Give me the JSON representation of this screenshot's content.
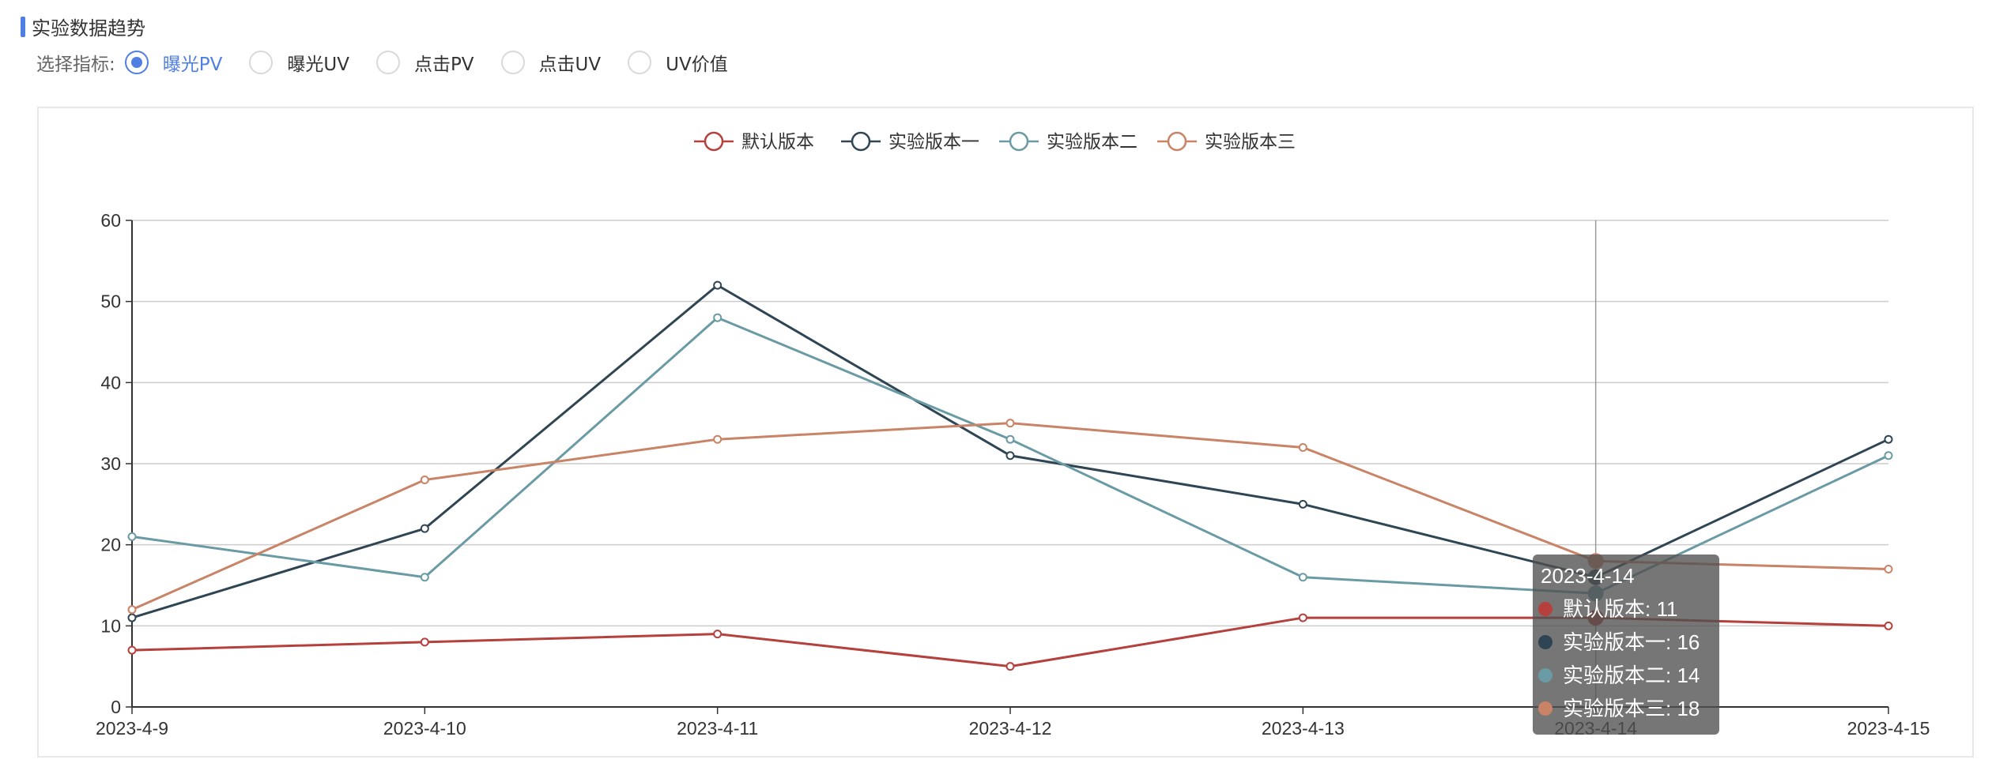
{
  "section": {
    "title": "实验数据趋势"
  },
  "metric_selector": {
    "label": "选择指标:",
    "options": [
      "曝光PV",
      "曝光UV",
      "点击PV",
      "点击UV",
      "UV价值"
    ],
    "selected": "曝光PV"
  },
  "colors": {
    "accent": "#4f7fe3",
    "series": [
      "#b5403c",
      "#2f4554",
      "#6a9ba5",
      "#c98366"
    ]
  },
  "chart_data": {
    "type": "line",
    "x": [
      "2023-4-9",
      "2023-4-10",
      "2023-4-11",
      "2023-4-12",
      "2023-4-13",
      "2023-4-14",
      "2023-4-15"
    ],
    "series": [
      {
        "name": "默认版本",
        "values": [
          7,
          8,
          9,
          5,
          11,
          11,
          10
        ]
      },
      {
        "name": "实验版本一",
        "values": [
          11,
          22,
          52,
          31,
          25,
          16,
          33
        ]
      },
      {
        "name": "实验版本二",
        "values": [
          21,
          16,
          48,
          33,
          16,
          14,
          31
        ]
      },
      {
        "name": "实验版本三",
        "values": [
          12,
          28,
          33,
          35,
          32,
          18,
          17
        ]
      }
    ],
    "ylim": [
      0,
      60
    ],
    "yticks": [
      0,
      10,
      20,
      30,
      40,
      50,
      60
    ],
    "grid": true,
    "legend_position": "top-center",
    "tooltip": {
      "category": "2023-4-14",
      "lines": [
        "默认版本: 11",
        "实验版本一: 16",
        "实验版本二: 14",
        "实验版本三: 18"
      ]
    }
  }
}
